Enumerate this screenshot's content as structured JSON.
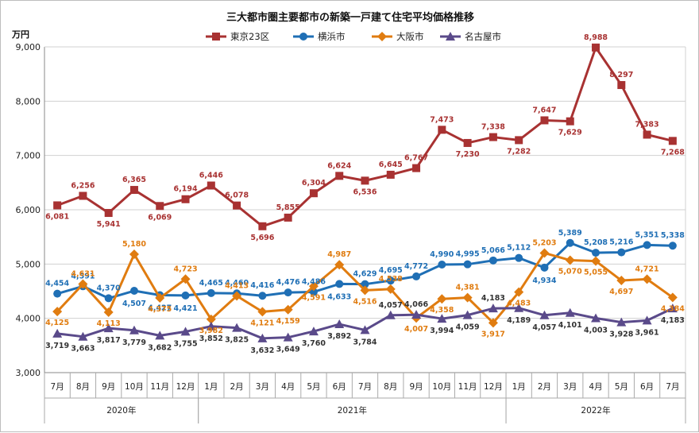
{
  "chart_data": {
    "type": "line",
    "title": "三大都市圏主要都市の新築一戸建て住宅平均価格推移",
    "ylabel": "万円",
    "ylim": [
      3000,
      9000
    ],
    "yticks": [
      "3,000",
      "4,000",
      "5,000",
      "6,000",
      "7,000",
      "8,000",
      "9,000"
    ],
    "grid": true,
    "legend_position": "top",
    "categories": [
      "7月",
      "8月",
      "9月",
      "10月",
      "11月",
      "12月",
      "1月",
      "2月",
      "3月",
      "4月",
      "5月",
      "6月",
      "7月",
      "8月",
      "9月",
      "10月",
      "11月",
      "12月",
      "1月",
      "2月",
      "3月",
      "4月",
      "5月",
      "6月",
      "7月"
    ],
    "years": [
      {
        "label": "2020年",
        "start": 0,
        "end": 5
      },
      {
        "label": "2021年",
        "start": 6,
        "end": 17
      },
      {
        "label": "2022年",
        "start": 18,
        "end": 24
      }
    ],
    "series": [
      {
        "name": "東京23区",
        "color": "#a83232",
        "marker": "square",
        "values": [
          6081,
          6256,
          5941,
          6365,
          6069,
          6194,
          6446,
          6078,
          5696,
          5855,
          6304,
          6624,
          6536,
          6645,
          6767,
          7473,
          7230,
          7338,
          7282,
          7647,
          7629,
          8988,
          8297,
          7383,
          7268
        ],
        "labels": [
          "6,081",
          "6,256",
          "5,941",
          "6,365",
          "6,069",
          "6,194",
          "6,446",
          "6,078",
          "5,696",
          "5,855",
          "6,304",
          "6,624",
          "6,536",
          "6,645",
          "6,767",
          "7,473",
          "7,230",
          "7,338",
          "7,282",
          "7,647",
          "7,629",
          "8,988",
          "8,297",
          "7,383",
          "7,268"
        ]
      },
      {
        "name": "横浜市",
        "color": "#1f6fb5",
        "marker": "circle",
        "values": [
          4454,
          4591,
          4370,
          4507,
          4427,
          4421,
          4465,
          4460,
          4416,
          4476,
          4486,
          4633,
          4629,
          4695,
          4772,
          4990,
          4995,
          5066,
          5112,
          4934,
          5389,
          5208,
          5216,
          5351,
          5338
        ],
        "labels": [
          "4,454",
          "4,591",
          "4,370",
          "4,507",
          "4,427",
          "4,421",
          "4,465",
          "4,460",
          "4,416",
          "4,476",
          "4,486",
          "4,633",
          "4,629",
          "4,695",
          "4,772",
          "4,990",
          "4,995",
          "5,066",
          "5,112",
          "4,934",
          "5,389",
          "5,208",
          "5,216",
          "5,351",
          "5,338"
        ]
      },
      {
        "name": "大阪市",
        "color": "#e07c10",
        "marker": "diamond",
        "values": [
          4125,
          4631,
          4113,
          5180,
          4375,
          4723,
          3982,
          4413,
          4121,
          4159,
          4591,
          4987,
          4516,
          4538,
          4007,
          4358,
          4381,
          3917,
          4483,
          5203,
          5070,
          5055,
          4697,
          4721,
          4384
        ],
        "labels": [
          "4,125",
          "4,631",
          "4,113",
          "5,180",
          "4,375",
          "4,723",
          "3,982",
          "4,413",
          "4,121",
          "4,159",
          "4,591",
          "4,987",
          "4,516",
          "4,538",
          "4,007",
          "4,358",
          "4,381",
          "3,917",
          "4,483",
          "5,203",
          "5,070",
          "5,055",
          "4,697",
          "4,721",
          "4,384"
        ]
      },
      {
        "name": "名古屋市",
        "color": "#5a4a8a",
        "marker": "triangle",
        "values": [
          3719,
          3663,
          3817,
          3779,
          3682,
          3755,
          3852,
          3825,
          3632,
          3649,
          3760,
          3892,
          3784,
          4057,
          4066,
          3994,
          4059,
          4183,
          4189,
          4057,
          4101,
          4003,
          3928,
          3961,
          4183
        ],
        "labels": [
          "3,719",
          "3,663",
          "3,817",
          "3,779",
          "3,682",
          "3,755",
          "3,852",
          "3,825",
          "3,632",
          "3,649",
          "3,760",
          "3,892",
          "3,784",
          "4,057",
          "4,066",
          "3,994",
          "4,059",
          "4,183",
          "4,189",
          "4,057",
          "4,101",
          "4,003",
          "3,928",
          "3,961",
          "4,183"
        ]
      }
    ]
  }
}
